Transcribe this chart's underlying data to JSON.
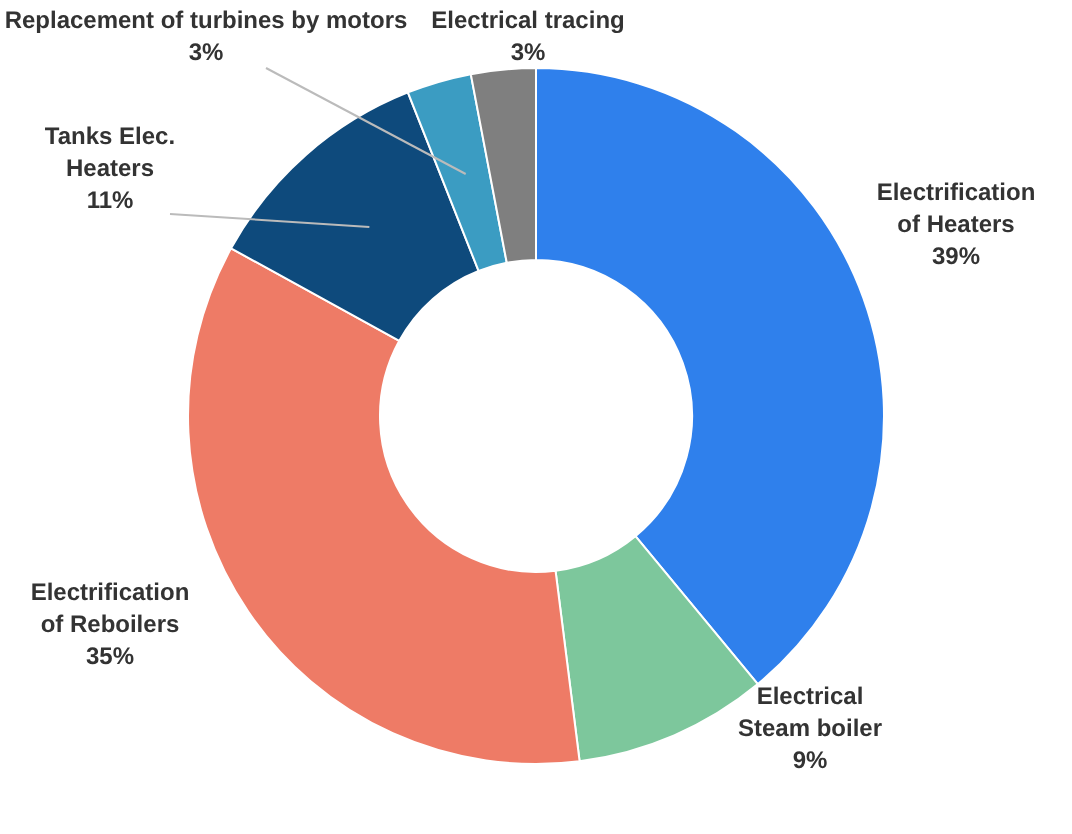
{
  "chart_data": {
    "type": "donut",
    "categories": [
      "Electrification of Heaters",
      "Electrical Steam boiler",
      "Electrification of Reboilers",
      "Tanks Elec. Heaters",
      "Replacement of turbines by motors",
      "Electrical tracing"
    ],
    "values": [
      39,
      9,
      35,
      11,
      3,
      3
    ],
    "colors": [
      "#2f80ec",
      "#7dc79c",
      "#ee7b66",
      "#0e4a7c",
      "#3b9cc2",
      "#7f7f7f"
    ],
    "value_labels": [
      "39%",
      "9%",
      "35%",
      "11%",
      "3%",
      "3%"
    ]
  }
}
